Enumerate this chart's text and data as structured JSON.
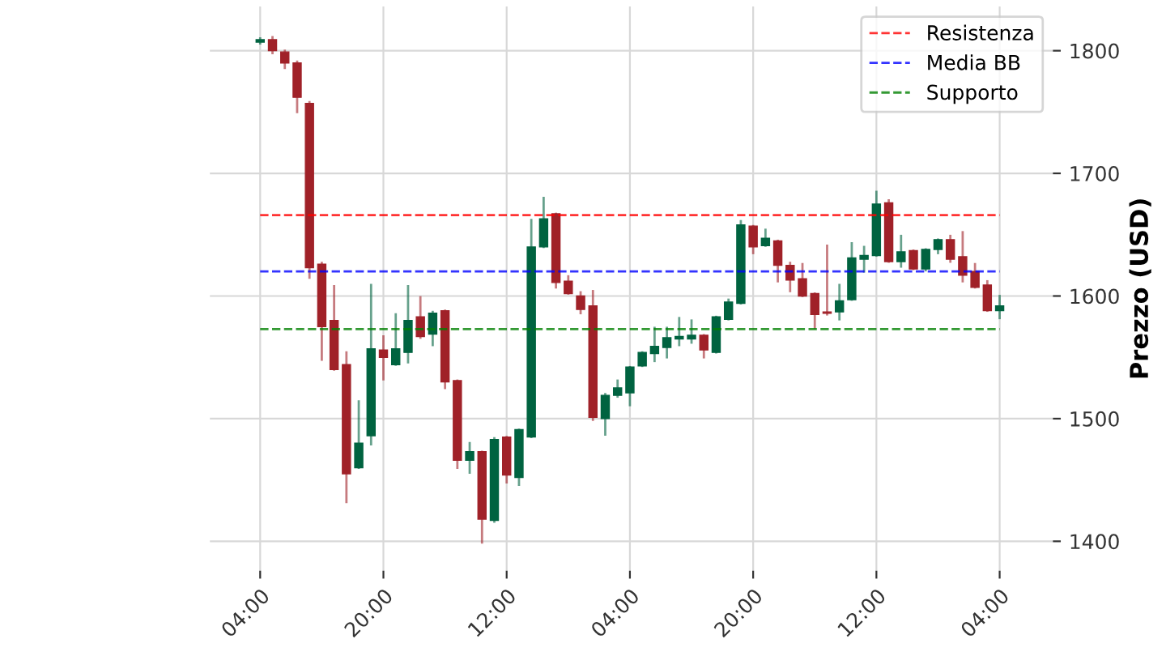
{
  "chart_data": {
    "type": "candlestick",
    "ylabel": "Prezzo (USD)",
    "categories": [
      "04:00",
      null,
      null,
      null,
      null,
      null,
      null,
      null,
      null,
      null,
      "20:00",
      null,
      null,
      null,
      null,
      null,
      null,
      null,
      null,
      null,
      "12:00",
      null,
      null,
      null,
      null,
      null,
      null,
      null,
      null,
      null,
      "04:00",
      null,
      null,
      null,
      null,
      null,
      null,
      null,
      null,
      null,
      "20:00",
      null,
      null,
      null,
      null,
      null,
      null,
      null,
      null,
      null,
      "12:00",
      null,
      null,
      null,
      null,
      null,
      null,
      null,
      null,
      null,
      "04:00"
    ],
    "ohlc": [
      [
        1807,
        1810,
        1806,
        1809
      ],
      [
        1809,
        1811,
        1798,
        1800
      ],
      [
        1799,
        1800,
        1786,
        1790
      ],
      [
        1790,
        1791,
        1750,
        1762
      ],
      [
        1757,
        1758,
        1615,
        1623
      ],
      [
        1626,
        1627,
        1548,
        1575
      ],
      [
        1580,
        1608,
        1540,
        1540
      ],
      [
        1544,
        1554,
        1432,
        1455
      ],
      [
        1460,
        1514,
        1460,
        1480
      ],
      [
        1486,
        1609,
        1479,
        1557
      ],
      [
        1556,
        1567,
        1532,
        1550
      ],
      [
        1544,
        1585,
        1544,
        1557
      ],
      [
        1554,
        1608,
        1546,
        1580
      ],
      [
        1583,
        1599,
        1566,
        1567
      ],
      [
        1569,
        1587,
        1560,
        1586
      ],
      [
        1588,
        1588,
        1525,
        1530
      ],
      [
        1531,
        1531,
        1460,
        1466
      ],
      [
        1466,
        1480,
        1456,
        1473
      ],
      [
        1473,
        1473,
        1399,
        1418
      ],
      [
        1417,
        1484,
        1416,
        1483
      ],
      [
        1485,
        1485,
        1448,
        1454
      ],
      [
        1452,
        1491,
        1446,
        1491
      ],
      [
        1485,
        1662,
        1485,
        1640
      ],
      [
        1640,
        1680,
        1640,
        1663
      ],
      [
        1667,
        1667,
        1607,
        1611
      ],
      [
        1612,
        1616,
        1602,
        1602
      ],
      [
        1600,
        1603,
        1586,
        1589
      ],
      [
        1592,
        1604,
        1499,
        1501
      ],
      [
        1500,
        1520,
        1487,
        1519
      ],
      [
        1519,
        1531,
        1518,
        1525
      ],
      [
        1521,
        1542,
        1511,
        1542
      ],
      [
        1543,
        1554,
        1543,
        1554
      ],
      [
        1553,
        1574,
        1547,
        1559
      ],
      [
        1558,
        1574,
        1550,
        1566
      ],
      [
        1565,
        1582,
        1560,
        1567
      ],
      [
        1565,
        1580,
        1562,
        1568
      ],
      [
        1568,
        1568,
        1550,
        1556
      ],
      [
        1554,
        1583,
        1554,
        1583
      ],
      [
        1581,
        1597,
        1581,
        1595
      ],
      [
        1594,
        1661,
        1594,
        1658
      ],
      [
        1657,
        1657,
        1635,
        1640
      ],
      [
        1641,
        1654,
        1641,
        1647
      ],
      [
        1645,
        1645,
        1612,
        1625
      ],
      [
        1625,
        1627,
        1604,
        1613
      ],
      [
        1614,
        1626,
        1600,
        1600
      ],
      [
        1602,
        1602,
        1574,
        1585
      ],
      [
        1587,
        1641,
        1585,
        1586
      ],
      [
        1587,
        1609,
        1581,
        1596
      ],
      [
        1597,
        1643,
        1597,
        1631
      ],
      [
        1630,
        1640,
        1620,
        1633
      ],
      [
        1633,
        1685,
        1633,
        1675
      ],
      [
        1676,
        1678,
        1628,
        1628
      ],
      [
        1628,
        1649,
        1624,
        1636
      ],
      [
        1637,
        1637,
        1622,
        1622
      ],
      [
        1622,
        1638,
        1621,
        1638
      ],
      [
        1638,
        1646,
        1635,
        1646
      ],
      [
        1646,
        1649,
        1628,
        1630
      ],
      [
        1632,
        1652,
        1612,
        1617
      ],
      [
        1620,
        1626,
        1607,
        1607
      ],
      [
        1609,
        1612,
        1588,
        1588
      ],
      [
        1588,
        1600,
        1582,
        1592
      ]
    ],
    "colors": [
      "#006340",
      "#a02128",
      "#a02128",
      "#a02128",
      "#a02128",
      "#a02128",
      "#a02128",
      "#a02128",
      "#006340",
      "#006340",
      "#a02128",
      "#006340",
      "#006340",
      "#a02128",
      "#006340",
      "#a02128",
      "#a02128",
      "#006340",
      "#a02128",
      "#006340",
      "#a02128",
      "#006340",
      "#006340",
      "#006340",
      "#a02128",
      "#a02128",
      "#a02128",
      "#a02128",
      "#006340",
      "#006340",
      "#006340",
      "#006340",
      "#006340",
      "#006340",
      "#006340",
      "#006340",
      "#a02128",
      "#006340",
      "#006340",
      "#006340",
      "#a02128",
      "#006340",
      "#a02128",
      "#a02128",
      "#a02128",
      "#a02128",
      "#a02128",
      "#006340",
      "#006340",
      "#006340",
      "#006340",
      "#a02128",
      "#006340",
      "#a02128",
      "#006340",
      "#006340",
      "#a02128",
      "#a02128",
      "#a02128",
      "#a02128",
      "#006340"
    ],
    "ylim": [
      1376,
      1836
    ],
    "yticks": [
      1400,
      1500,
      1600,
      1700,
      1800
    ],
    "ref_lines": [
      {
        "axis": "y",
        "value": 1666,
        "label": "Resistenza",
        "color": "#ff0000",
        "line_style": "dashed"
      },
      {
        "axis": "y",
        "value": 1620,
        "label": "Media BB",
        "color": "#0000ff",
        "line_style": "dashed"
      },
      {
        "axis": "y",
        "value": 1573,
        "label": "Supporto",
        "color": "#008000",
        "line_style": "dashed"
      }
    ],
    "grid": true,
    "legend": "top right"
  }
}
